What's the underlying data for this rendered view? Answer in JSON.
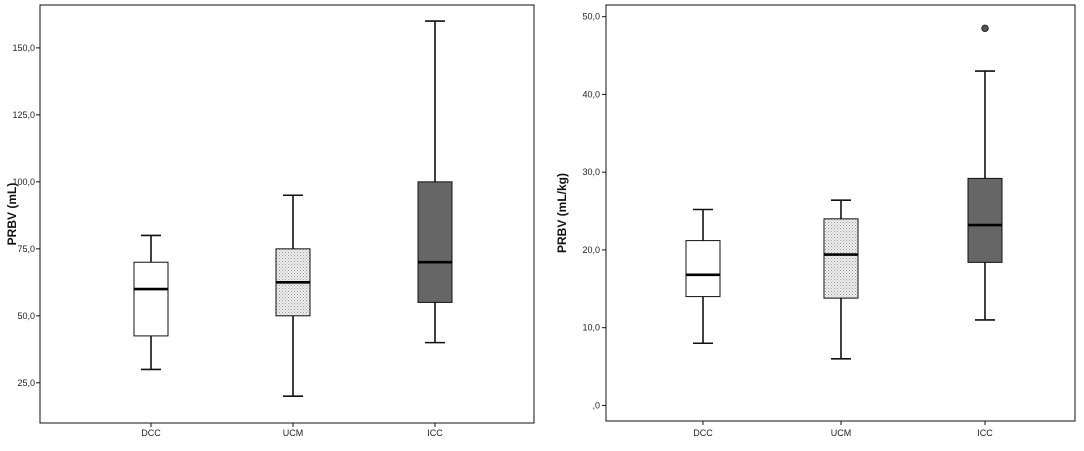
{
  "chart_data": [
    {
      "type": "boxplot",
      "title": "",
      "ylabel": "PRBV (mL)",
      "xlabel": "",
      "ylim": [
        10,
        166
      ],
      "yticks": [
        25,
        50,
        75,
        100,
        125,
        150
      ],
      "ytick_labels": [
        "25,0",
        "50,0",
        "75,0",
        "100,0",
        "125,0",
        "150,0"
      ],
      "categories": [
        "DCC",
        "UCM",
        "ICC"
      ],
      "boxes": [
        {
          "category": "DCC",
          "min": 30,
          "q1": 42.5,
          "median": 60,
          "q3": 70,
          "max": 80,
          "fill": "white",
          "outliers": []
        },
        {
          "category": "UCM",
          "min": 20,
          "q1": 50,
          "median": 62.5,
          "q3": 75,
          "max": 95,
          "fill": "dotted",
          "outliers": []
        },
        {
          "category": "ICC",
          "min": 40,
          "q1": 55,
          "median": 70,
          "q3": 100,
          "max": 160,
          "fill": "dark",
          "outliers": []
        }
      ],
      "grid": false
    },
    {
      "type": "boxplot",
      "title": "",
      "ylabel": "PRBV (mL/kg)",
      "xlabel": "",
      "ylim": [
        -2,
        51.5
      ],
      "yticks": [
        0,
        10,
        20,
        30,
        40,
        50
      ],
      "ytick_labels": [
        ",0",
        "10,0",
        "20,0",
        "30,0",
        "40,0",
        "50,0"
      ],
      "categories": [
        "DCC",
        "UCM",
        "ICC"
      ],
      "boxes": [
        {
          "category": "DCC",
          "min": 8,
          "q1": 14,
          "median": 16.8,
          "q3": 21.2,
          "max": 25.2,
          "fill": "white",
          "outliers": []
        },
        {
          "category": "UCM",
          "min": 6,
          "q1": 13.8,
          "median": 19.4,
          "q3": 24,
          "max": 26.4,
          "fill": "dotted",
          "outliers": []
        },
        {
          "category": "ICC",
          "min": 11,
          "q1": 18.4,
          "median": 23.2,
          "q3": 29.2,
          "max": 43,
          "fill": "dark",
          "outliers": [
            48.5
          ]
        }
      ],
      "grid": false
    }
  ],
  "colors": {
    "dark_box": "#666666",
    "dotted_box": "#dcdcdc",
    "white_box": "#ffffff",
    "outlier": "#555555",
    "frame": "#111111"
  }
}
